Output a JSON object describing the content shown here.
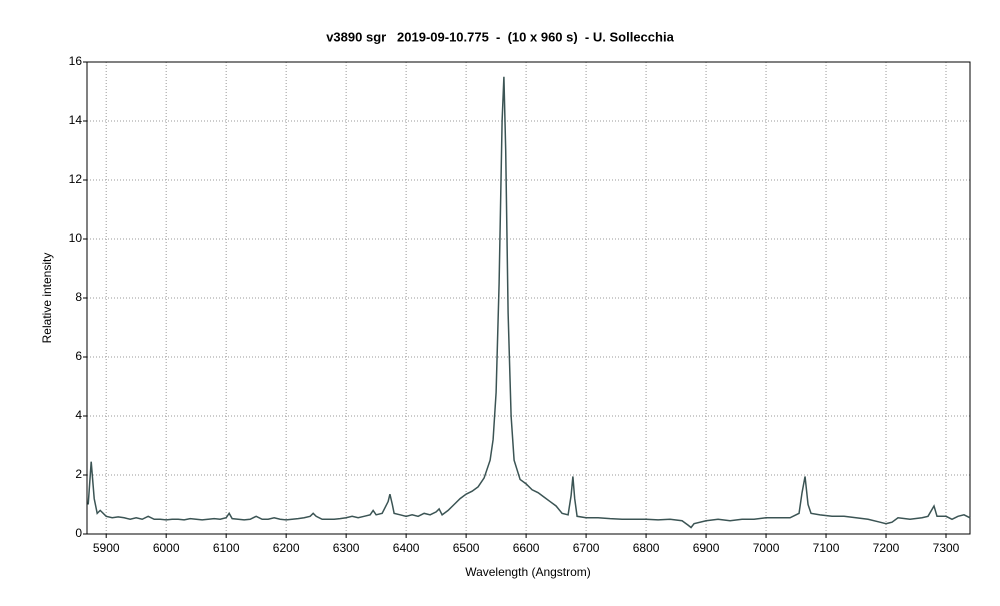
{
  "chart_data": {
    "type": "line",
    "title": "v3890 sgr   2019-09-10.775  -  (10 x 960 s)  - U. Sollecchia",
    "x_label": "Wavelength (Angstrom)",
    "y_label": "Relative intensity",
    "xlim": [
      5868,
      7340
    ],
    "ylim": [
      0,
      16
    ],
    "xticks": [
      5900,
      6000,
      6100,
      6200,
      6300,
      6400,
      6500,
      6600,
      6700,
      6800,
      6900,
      7000,
      7100,
      7200,
      7300
    ],
    "yticks": [
      0,
      2,
      4,
      6,
      8,
      10,
      12,
      14,
      16
    ],
    "grid": true,
    "series": [
      {
        "color": "#3b5454",
        "x": [
          5870,
          5875,
          5880,
          5885,
          5890,
          5900,
          5910,
          5920,
          5930,
          5940,
          5950,
          5960,
          5970,
          5980,
          5990,
          6000,
          6010,
          6020,
          6030,
          6040,
          6050,
          6060,
          6070,
          6080,
          6090,
          6100,
          6105,
          6110,
          6120,
          6130,
          6140,
          6150,
          6160,
          6170,
          6180,
          6190,
          6200,
          6210,
          6220,
          6230,
          6240,
          6245,
          6250,
          6260,
          6270,
          6280,
          6290,
          6300,
          6310,
          6320,
          6330,
          6340,
          6345,
          6350,
          6360,
          6370,
          6373,
          6377,
          6380,
          6390,
          6400,
          6410,
          6420,
          6430,
          6440,
          6450,
          6455,
          6460,
          6470,
          6480,
          6490,
          6500,
          6510,
          6520,
          6530,
          6540,
          6545,
          6550,
          6555,
          6560,
          6563,
          6566,
          6570,
          6575,
          6580,
          6590,
          6600,
          6610,
          6620,
          6630,
          6640,
          6650,
          6660,
          6670,
          6675,
          6678,
          6681,
          6685,
          6700,
          6720,
          6740,
          6760,
          6780,
          6800,
          6820,
          6840,
          6860,
          6870,
          6875,
          6880,
          6900,
          6920,
          6940,
          6960,
          6980,
          7000,
          7020,
          7040,
          7055,
          7060,
          7065,
          7070,
          7075,
          7090,
          7110,
          7130,
          7150,
          7170,
          7190,
          7200,
          7210,
          7220,
          7240,
          7260,
          7270,
          7280,
          7285,
          7300,
          7310,
          7320,
          7330,
          7340
        ],
        "values": [
          1.0,
          2.45,
          1.2,
          0.7,
          0.8,
          0.6,
          0.55,
          0.58,
          0.55,
          0.5,
          0.55,
          0.5,
          0.6,
          0.5,
          0.5,
          0.48,
          0.5,
          0.5,
          0.48,
          0.52,
          0.5,
          0.48,
          0.5,
          0.52,
          0.5,
          0.55,
          0.7,
          0.52,
          0.5,
          0.48,
          0.5,
          0.6,
          0.5,
          0.5,
          0.55,
          0.5,
          0.48,
          0.5,
          0.52,
          0.55,
          0.6,
          0.7,
          0.6,
          0.5,
          0.5,
          0.5,
          0.52,
          0.55,
          0.6,
          0.55,
          0.6,
          0.65,
          0.8,
          0.65,
          0.7,
          1.1,
          1.35,
          1.0,
          0.7,
          0.65,
          0.6,
          0.65,
          0.6,
          0.7,
          0.65,
          0.75,
          0.85,
          0.65,
          0.8,
          1.0,
          1.2,
          1.35,
          1.45,
          1.6,
          1.9,
          2.5,
          3.2,
          4.8,
          8.5,
          14.0,
          15.5,
          13.0,
          7.5,
          4.0,
          2.5,
          1.85,
          1.7,
          1.5,
          1.4,
          1.25,
          1.1,
          0.95,
          0.7,
          0.65,
          1.3,
          1.95,
          1.2,
          0.6,
          0.55,
          0.55,
          0.52,
          0.5,
          0.5,
          0.5,
          0.48,
          0.5,
          0.45,
          0.3,
          0.22,
          0.35,
          0.45,
          0.5,
          0.45,
          0.5,
          0.5,
          0.55,
          0.55,
          0.55,
          0.7,
          1.4,
          1.95,
          1.0,
          0.7,
          0.65,
          0.6,
          0.6,
          0.55,
          0.5,
          0.4,
          0.35,
          0.4,
          0.55,
          0.5,
          0.55,
          0.6,
          0.95,
          0.6,
          0.6,
          0.5,
          0.6,
          0.65,
          0.55
        ]
      }
    ]
  }
}
